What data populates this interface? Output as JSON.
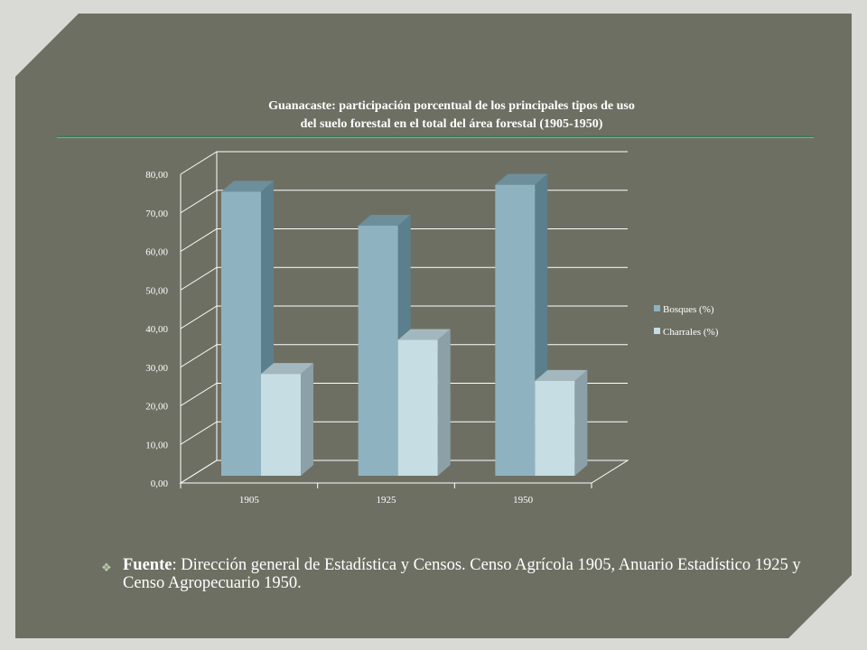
{
  "title": {
    "line1": "Guanacaste: participación porcentual de los principales tipos de uso",
    "line2": "del suelo forestal en el total del área forestal (1905-1950)"
  },
  "source": {
    "label": "Fuente",
    "text": ": Dirección general de Estadística y Censos. Censo Agrícola 1905, Anuario Estadístico 1925 y Censo Agropecuario 1950."
  },
  "colors": {
    "background": "#6e6f63",
    "bosques": "#8eb2c0",
    "charrales": "#c5dde3"
  },
  "chart_data": {
    "type": "bar",
    "categories": [
      "1905",
      "1925",
      "1950"
    ],
    "series": [
      {
        "name": "Bosques (%)",
        "values": [
          73.6,
          64.8,
          75.4
        ]
      },
      {
        "name": "Charrales (%)",
        "values": [
          26.4,
          35.2,
          24.6
        ]
      }
    ],
    "ylim": [
      0,
      80
    ],
    "yticks": [
      "0,00",
      "10,00",
      "20,00",
      "30,00",
      "40,00",
      "50,00",
      "60,00",
      "70,00",
      "80,00"
    ],
    "grid": true,
    "legend": "right",
    "style": "3d"
  }
}
